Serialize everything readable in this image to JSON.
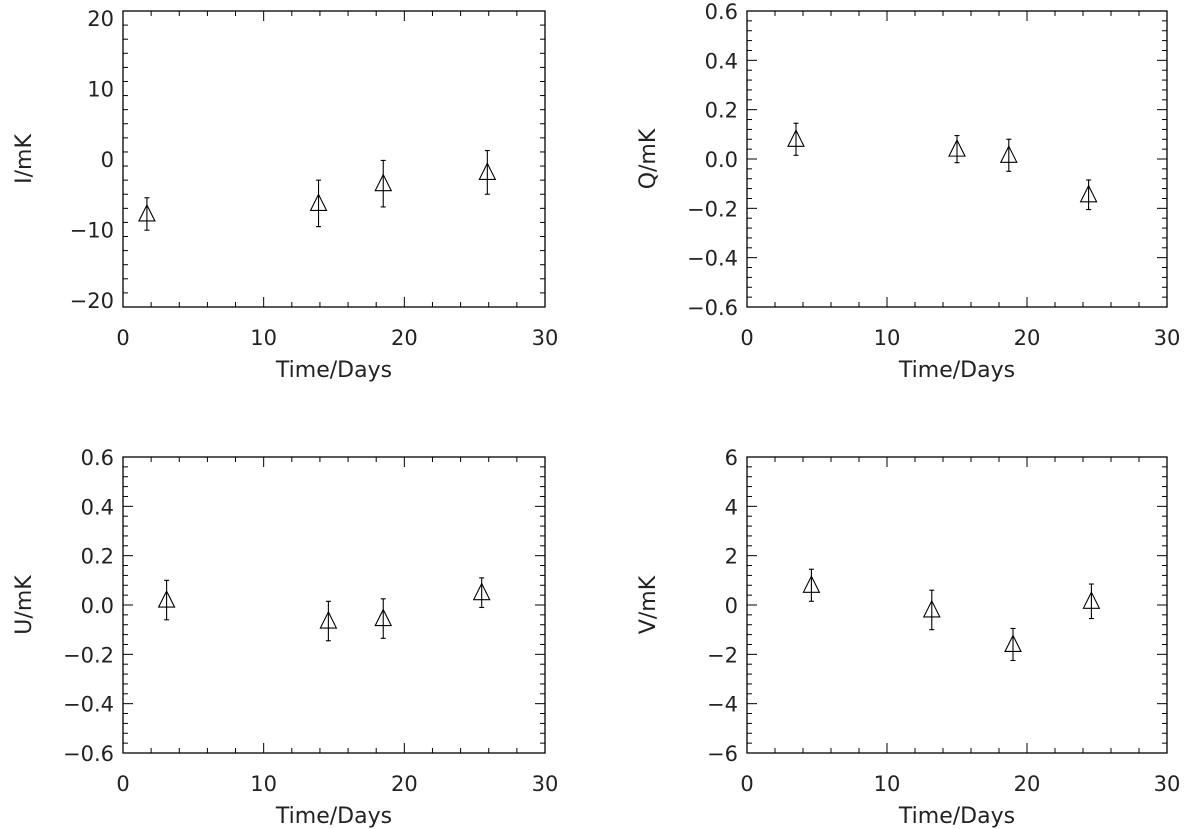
{
  "chart_data": [
    {
      "type": "scatter",
      "xlabel": "Time/Days",
      "ylabel": "I/mK",
      "xlim": [
        0,
        30
      ],
      "ylim": [
        -21,
        21
      ],
      "xticks": [
        "0",
        "10",
        "20",
        "30"
      ],
      "yticks": [
        "−20",
        "−10",
        "0",
        "10",
        "20"
      ],
      "grid": false,
      "marker": "triangle",
      "points": [
        {
          "x": 1.7,
          "y": -7.8,
          "err": 2.3
        },
        {
          "x": 13.9,
          "y": -6.3,
          "err": 3.3
        },
        {
          "x": 18.5,
          "y": -3.5,
          "err": 3.3
        },
        {
          "x": 25.9,
          "y": -1.9,
          "err": 3.1
        }
      ]
    },
    {
      "type": "scatter",
      "xlabel": "Time/Days",
      "ylabel": "Q/mK",
      "xlim": [
        0,
        30
      ],
      "ylim": [
        -0.6,
        0.6
      ],
      "xticks": [
        "0",
        "10",
        "20",
        "30"
      ],
      "yticks": [
        "−0.6",
        "−0.4",
        "−0.2",
        "0.0",
        "0.2",
        "0.4",
        "0.6"
      ],
      "grid": false,
      "marker": "triangle",
      "points": [
        {
          "x": 3.5,
          "y": 0.08,
          "err": 0.065
        },
        {
          "x": 15.0,
          "y": 0.04,
          "err": 0.055
        },
        {
          "x": 18.7,
          "y": 0.015,
          "err": 0.065
        },
        {
          "x": 24.4,
          "y": -0.145,
          "err": 0.06
        }
      ]
    },
    {
      "type": "scatter",
      "xlabel": "Time/Days",
      "ylabel": "U/mK",
      "xlim": [
        0,
        30
      ],
      "ylim": [
        -0.6,
        0.6
      ],
      "xticks": [
        "0",
        "10",
        "20",
        "30"
      ],
      "yticks": [
        "−0.6",
        "−0.4",
        "−0.2",
        "0.0",
        "0.2",
        "0.4",
        "0.6"
      ],
      "grid": false,
      "marker": "triangle",
      "points": [
        {
          "x": 3.1,
          "y": 0.02,
          "err": 0.08
        },
        {
          "x": 14.6,
          "y": -0.065,
          "err": 0.08
        },
        {
          "x": 18.5,
          "y": -0.055,
          "err": 0.08
        },
        {
          "x": 25.5,
          "y": 0.05,
          "err": 0.06
        }
      ]
    },
    {
      "type": "scatter",
      "xlabel": "Time/Days",
      "ylabel": "V/mK",
      "xlim": [
        0,
        30
      ],
      "ylim": [
        -6,
        6
      ],
      "xticks": [
        "0",
        "10",
        "20",
        "30"
      ],
      "yticks": [
        "−6",
        "−4",
        "−2",
        "0",
        "2",
        "4",
        "6"
      ],
      "grid": false,
      "marker": "triangle",
      "points": [
        {
          "x": 4.6,
          "y": 0.8,
          "err": 0.65
        },
        {
          "x": 13.2,
          "y": -0.2,
          "err": 0.8
        },
        {
          "x": 19.0,
          "y": -1.6,
          "err": 0.65
        },
        {
          "x": 24.6,
          "y": 0.15,
          "err": 0.7
        }
      ]
    }
  ]
}
